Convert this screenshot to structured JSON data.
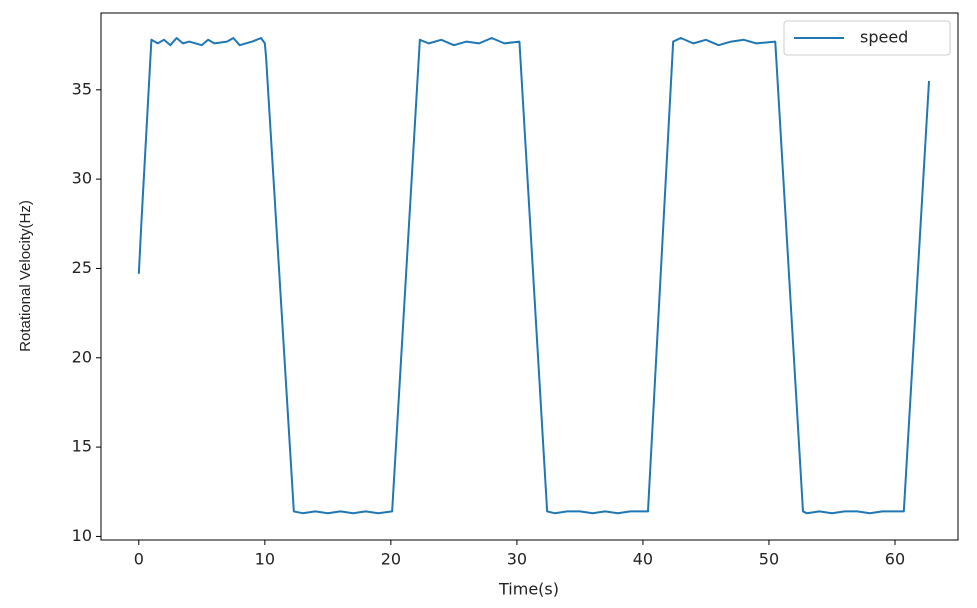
{
  "chart_data": {
    "type": "line",
    "xlabel": "Time(s)",
    "ylabel": "Rotational Velocity(Hz)",
    "x": [
      0,
      0.2,
      1.0,
      1.5,
      2,
      2.5,
      3,
      3.5,
      4,
      5,
      5.5,
      6,
      7,
      7.5,
      8,
      9,
      9.7,
      10,
      10.1,
      12.3,
      13,
      14,
      15,
      16,
      17,
      18,
      19,
      20.1,
      22.3,
      23,
      24,
      25,
      26,
      27,
      28,
      29,
      30.2,
      32.4,
      33,
      34,
      35,
      36,
      37,
      38,
      39,
      40.4,
      42.4,
      43,
      44,
      45,
      46,
      47,
      48,
      49,
      50.5,
      52.7,
      53,
      54,
      55,
      56,
      57,
      58,
      59,
      60.7,
      62.7
    ],
    "series": [
      {
        "name": "speed",
        "color": "#1f77b4",
        "values": [
          24.7,
          27.5,
          37.8,
          37.6,
          37.8,
          37.5,
          37.9,
          37.6,
          37.7,
          37.5,
          37.8,
          37.6,
          37.7,
          37.9,
          37.5,
          37.7,
          37.9,
          37.6,
          36.8,
          11.4,
          11.3,
          11.4,
          11.3,
          11.4,
          11.3,
          11.4,
          11.3,
          11.4,
          37.8,
          37.6,
          37.8,
          37.5,
          37.7,
          37.6,
          37.9,
          37.6,
          37.7,
          11.4,
          11.3,
          11.4,
          11.4,
          11.3,
          11.4,
          11.3,
          11.4,
          11.4,
          37.7,
          37.9,
          37.6,
          37.8,
          37.5,
          37.7,
          37.8,
          37.6,
          37.7,
          11.4,
          11.3,
          11.4,
          11.3,
          11.4,
          11.4,
          11.3,
          11.4,
          11.4,
          35.5
        ]
      }
    ],
    "xlim": [
      -3,
      65
    ],
    "xticks": [
      0,
      10,
      20,
      30,
      40,
      50,
      60
    ],
    "ylim": [
      9.8,
      39.3
    ],
    "yticks": [
      10,
      15,
      20,
      25,
      30,
      35
    ],
    "grid": false,
    "legend": "upper right"
  }
}
